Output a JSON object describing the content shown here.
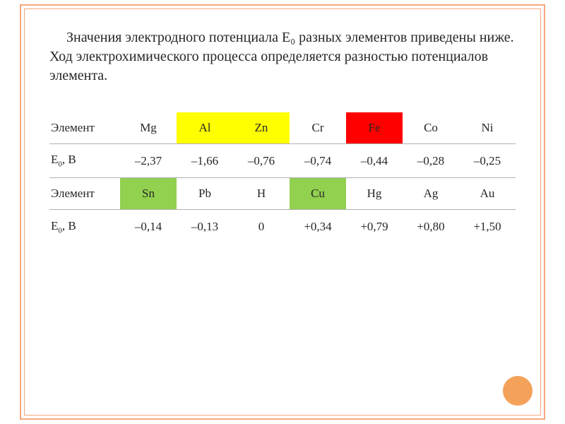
{
  "intro_text": "Значения электродного потенциала E₀ разных элементов приведены ниже. Ход электрохимического процесса определяется разностью потенциалов элемента.",
  "row_label_element": "Элемент",
  "row_label_potential": "E₀, B",
  "colors": {
    "yellow": "#ffff00",
    "red": "#ff0000",
    "green": "#92d050",
    "frame": "#f4a87c",
    "dot": "#f4a159",
    "text": "#262626",
    "grid": "#b0b0b0",
    "background": "#ffffff"
  },
  "table": {
    "row1": {
      "elements": [
        "Mg",
        "Al",
        "Zn",
        "Cr",
        "Fe",
        "Co",
        "Ni"
      ],
      "highlights": {
        "1": "yellow",
        "2": "yellow",
        "4": "red"
      },
      "values": [
        "–2,37",
        "–1,66",
        "–0,76",
        "–0,74",
        "–0,44",
        "–0,28",
        "–0,25"
      ]
    },
    "row2": {
      "elements": [
        "Sn",
        "Pb",
        "H",
        "Cu",
        "Hg",
        "Ag",
        "Au"
      ],
      "highlights": {
        "0": "green",
        "3": "green"
      },
      "values": [
        "–0,14",
        "–0,13",
        "0",
        "+0,34",
        "+0,79",
        "+0,80",
        "+1,50"
      ]
    }
  },
  "fontsizes": {
    "intro": 20,
    "table": 17
  }
}
